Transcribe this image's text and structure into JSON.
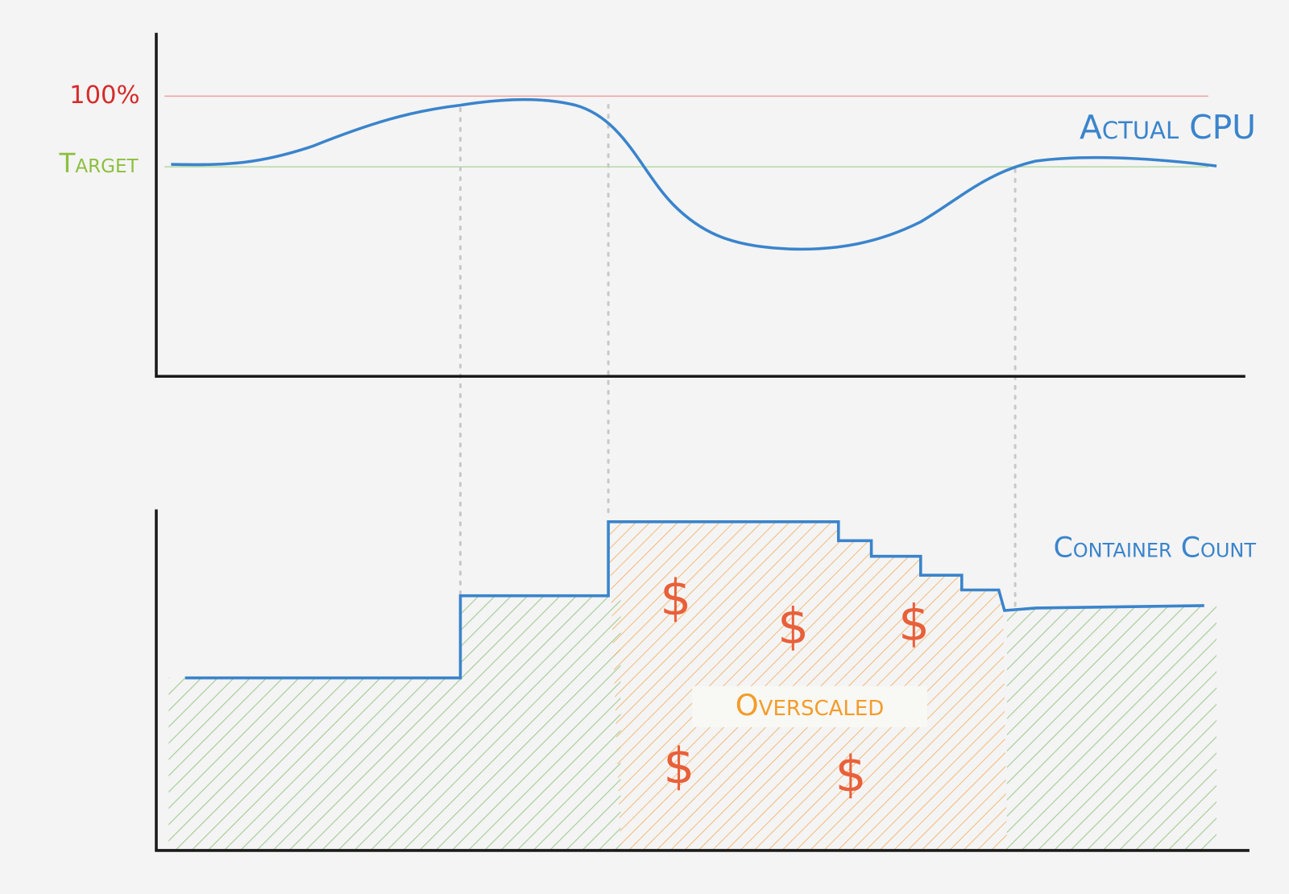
{
  "labels": {
    "max": "100%",
    "target": "Target",
    "cpu_series": "Actual CPU",
    "container_series": "Container Count",
    "overscaled": "Overscaled",
    "cost_markers": [
      "$",
      "$",
      "$",
      "$",
      "$"
    ]
  }
}
